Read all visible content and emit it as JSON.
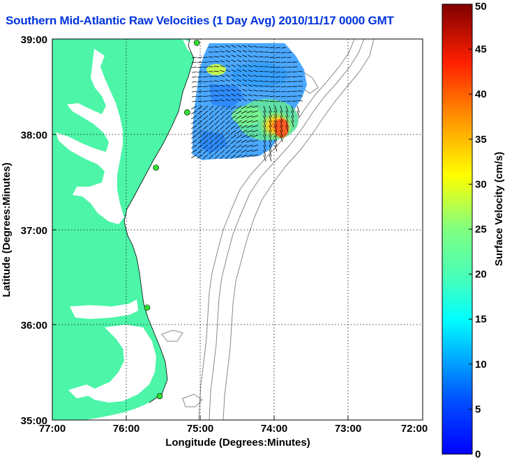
{
  "title": "Southern Mid-Atlantic Raw Velocities (1 Day Avg) 2010/11/17 0000 GMT",
  "map": {
    "xlabel": "Longitude (Degrees:Minutes)",
    "ylabel": "Latitude (Degrees:Minutes)",
    "x_ticks": [
      "77:00",
      "76:00",
      "75:00",
      "74:00",
      "73:00",
      "72:00"
    ],
    "y_ticks": [
      "39:00",
      "38:00",
      "37:00",
      "36:00",
      "35:00"
    ],
    "x_range_deg_west": [
      77,
      72
    ],
    "y_range_deg_north": [
      35,
      39
    ],
    "grid": "dotted",
    "colors": {
      "land": "#4cf5a8",
      "water": "#ffffff",
      "isobath": "#888888",
      "station": "#33dd33"
    }
  },
  "colorbar": {
    "label": "Surface Velocity (cm/s)",
    "ticks": [
      "0",
      "5",
      "10",
      "15",
      "20",
      "25",
      "30",
      "35",
      "40",
      "45",
      "50"
    ],
    "range": [
      0,
      50
    ],
    "colormap": "jet"
  },
  "stations_deg": [
    {
      "lon": -75.05,
      "lat": 38.96
    },
    {
      "lon": -75.18,
      "lat": 38.23
    },
    {
      "lon": -75.6,
      "lat": 37.65
    },
    {
      "lon": -75.72,
      "lat": 36.18
    },
    {
      "lon": -75.55,
      "lat": 35.25
    }
  ]
}
